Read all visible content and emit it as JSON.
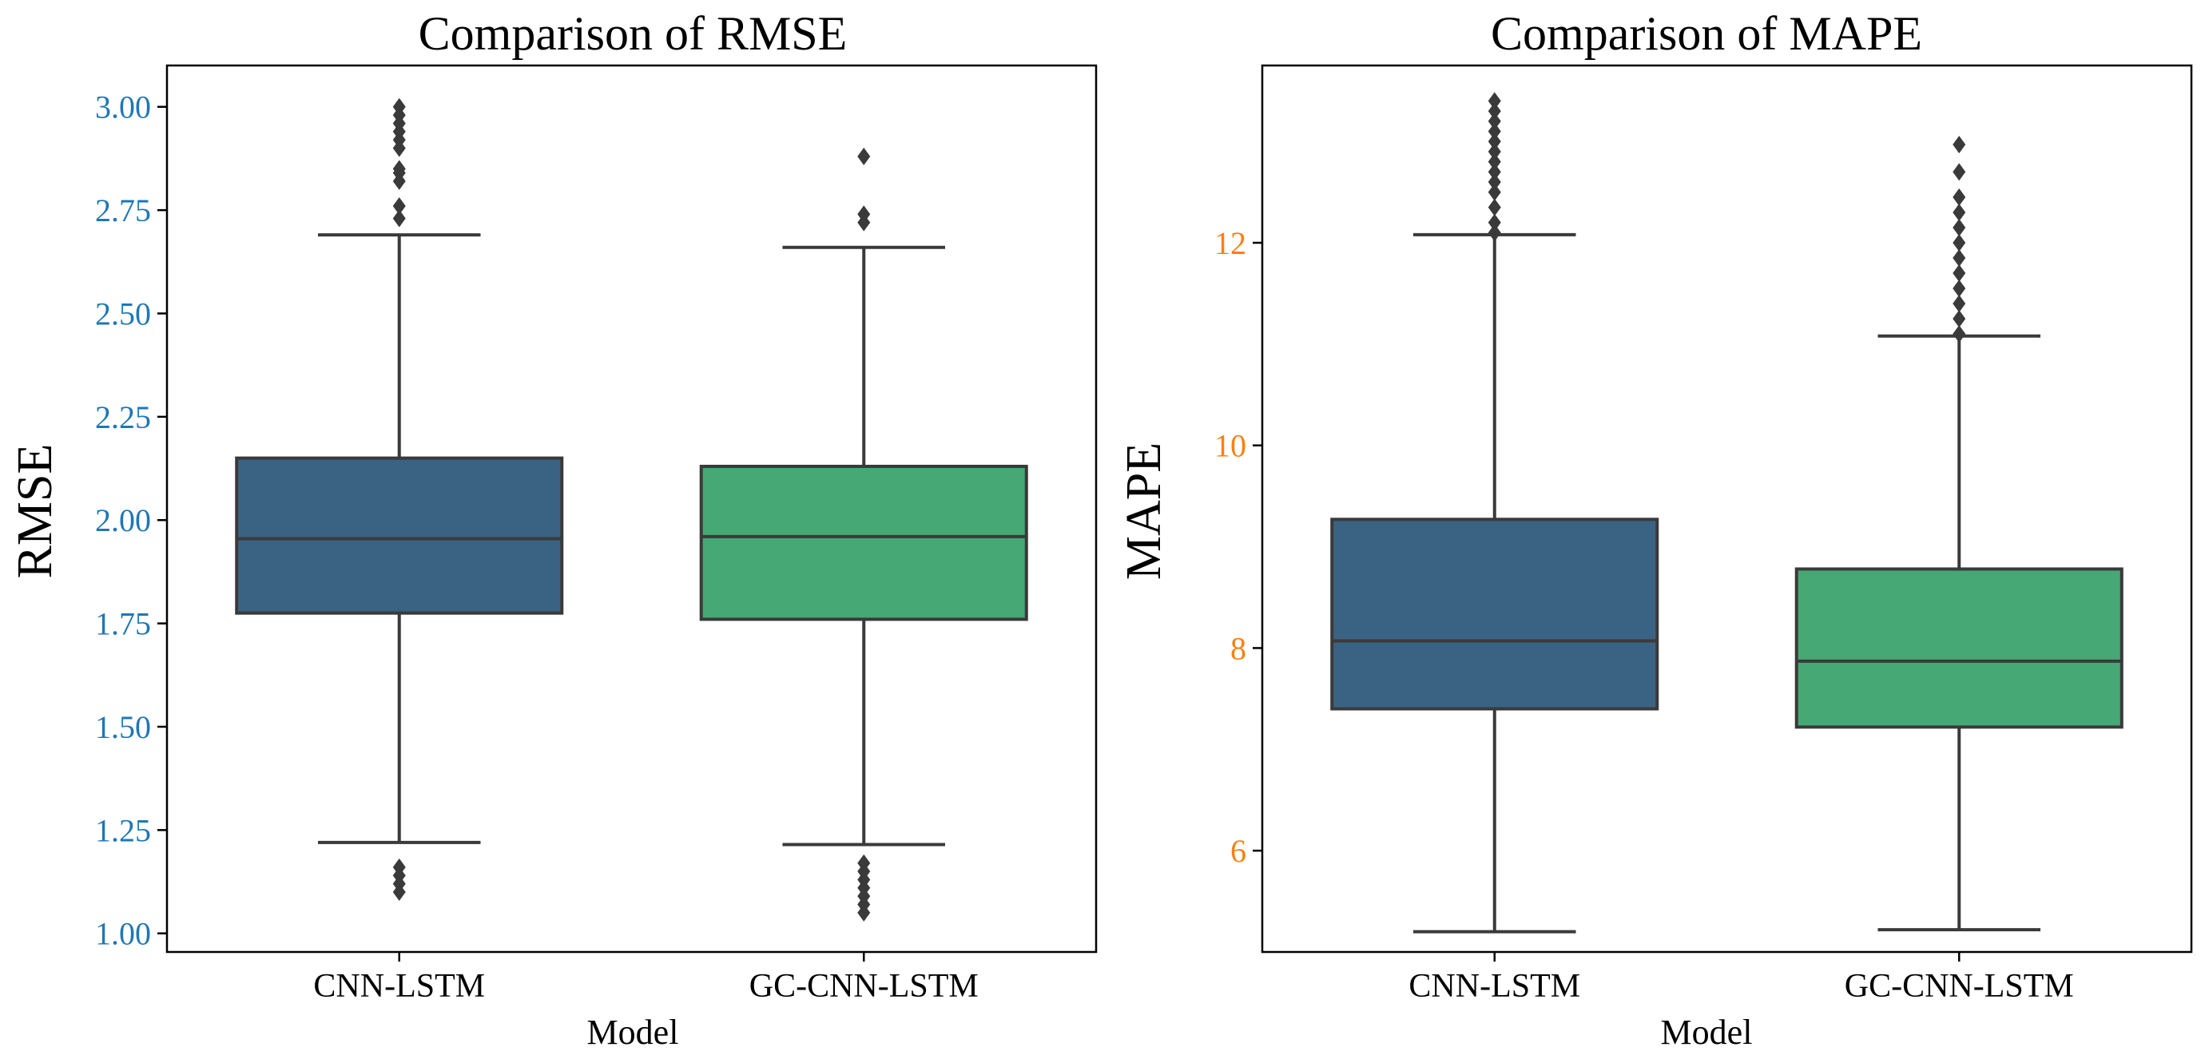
{
  "chart_data": [
    {
      "type": "box",
      "title": "Comparison of RMSE",
      "xlabel": "Model",
      "ylabel": "RMSE",
      "ylabel_color": "#1f77b4",
      "ylim": [
        0.955,
        3.1
      ],
      "yticks": [
        1.0,
        1.25,
        1.5,
        1.75,
        2.0,
        2.25,
        2.5,
        2.75,
        3.0
      ],
      "ytick_labels": [
        "1.00",
        "1.25",
        "1.50",
        "1.75",
        "2.00",
        "2.25",
        "2.50",
        "2.75",
        "3.00"
      ],
      "categories": [
        "CNN-LSTM",
        "GC-CNN-LSTM"
      ],
      "boxes": [
        {
          "name": "CNN-LSTM",
          "color": "#3a6383",
          "whisker_low": 1.22,
          "q1": 1.775,
          "median": 1.955,
          "q3": 2.15,
          "whisker_high": 2.69,
          "outliers": [
            1.1,
            1.12,
            1.14,
            1.16,
            2.73,
            2.76,
            2.82,
            2.84,
            2.85,
            2.9,
            2.92,
            2.94,
            2.96,
            2.98,
            3.0
          ]
        },
        {
          "name": "GC-CNN-LSTM",
          "color": "#46a874",
          "whisker_low": 1.215,
          "q1": 1.76,
          "median": 1.96,
          "q3": 2.13,
          "whisker_high": 2.66,
          "outliers": [
            1.05,
            1.07,
            1.09,
            1.11,
            1.13,
            1.15,
            1.17,
            2.72,
            2.74,
            2.88
          ]
        }
      ]
    },
    {
      "type": "box",
      "title": "Comparison of MAPE",
      "xlabel": "Model",
      "ylabel": "MAPE",
      "ylabel_color": "#ff7f0e",
      "ylim": [
        5.0,
        13.75
      ],
      "yticks": [
        6,
        8,
        10,
        12
      ],
      "ytick_labels": [
        "6",
        "8",
        "10",
        "12"
      ],
      "categories": [
        "CNN-LSTM",
        "GC-CNN-LSTM"
      ],
      "boxes": [
        {
          "name": "CNN-LSTM",
          "color": "#3a6383",
          "whisker_low": 5.2,
          "q1": 7.4,
          "median": 8.07,
          "q3": 9.27,
          "whisker_high": 12.08,
          "outliers": [
            12.1,
            12.2,
            12.35,
            12.5,
            12.6,
            12.7,
            12.8,
            12.9,
            13.0,
            13.1,
            13.2,
            13.3,
            13.4
          ]
        },
        {
          "name": "GC-CNN-LSTM",
          "color": "#46a874",
          "whisker_low": 5.22,
          "q1": 7.22,
          "median": 7.87,
          "q3": 8.78,
          "whisker_high": 11.08,
          "outliers": [
            11.1,
            11.25,
            11.4,
            11.55,
            11.7,
            11.85,
            12.0,
            12.15,
            12.3,
            12.45,
            12.7,
            12.97
          ]
        }
      ]
    }
  ]
}
